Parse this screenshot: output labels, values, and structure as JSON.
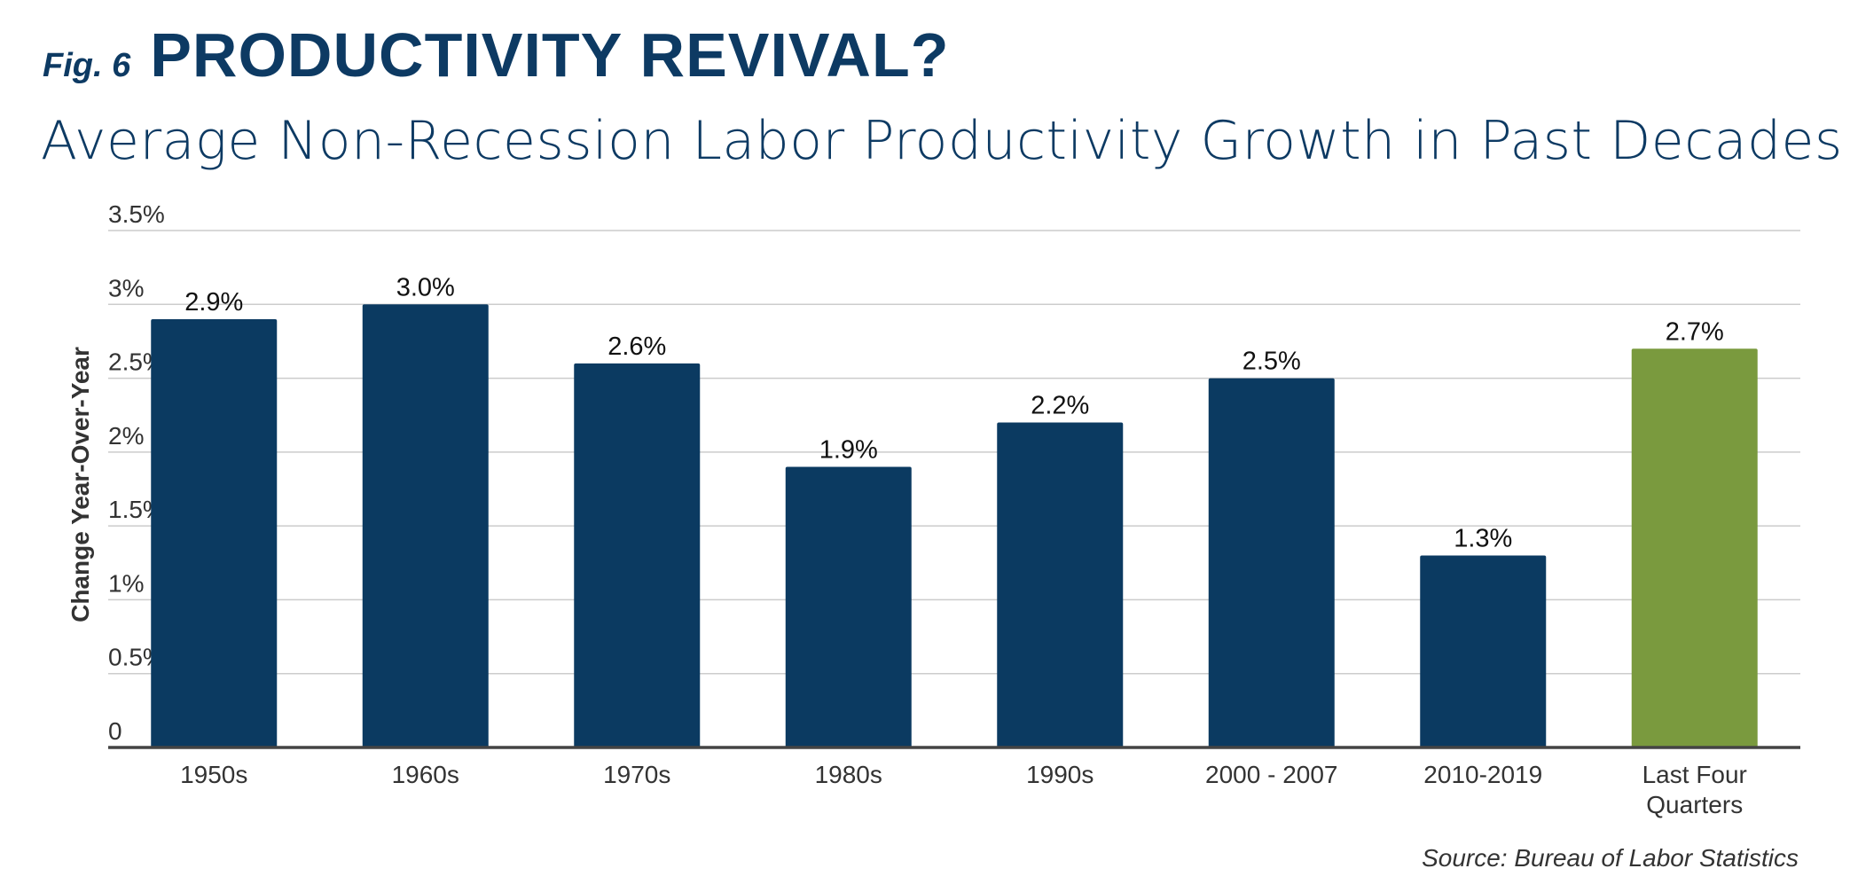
{
  "header": {
    "fig_label": "Fig. 6",
    "title": "PRODUCTIVITY REVIVAL?",
    "subtitle": "Average Non-Recession Labor Productivity Growth in Past Decades"
  },
  "source": "Source: Bureau of Labor Statistics",
  "colors": {
    "primary_bar": "#0b3a61",
    "highlight_bar": "#7a9a3e",
    "title": "#0d3a63",
    "grid": "#cccccc",
    "axis": "#444444"
  },
  "chart_data": {
    "type": "bar",
    "title": "Average Non-Recession Labor Productivity Growth in Past Decades",
    "ylabel": "Change Year-Over-Year",
    "xlabel": "",
    "ylim": [
      0,
      3.5
    ],
    "y_ticks": [
      {
        "value": 0,
        "label": "0"
      },
      {
        "value": 0.5,
        "label": "0.5%"
      },
      {
        "value": 1,
        "label": "1%"
      },
      {
        "value": 1.5,
        "label": "1.5%"
      },
      {
        "value": 2,
        "label": "2%"
      },
      {
        "value": 2.5,
        "label": "2.5%"
      },
      {
        "value": 3,
        "label": "3%"
      },
      {
        "value": 3.5,
        "label": "3.5%"
      }
    ],
    "grid": true,
    "categories": [
      [
        "1950s"
      ],
      [
        "1960s"
      ],
      [
        "1970s"
      ],
      [
        "1980s"
      ],
      [
        "1990s"
      ],
      [
        "2000 - 2007"
      ],
      [
        "2010-2019"
      ],
      [
        "Last Four",
        "Quarters"
      ]
    ],
    "values": [
      2.9,
      3.0,
      2.6,
      1.9,
      2.2,
      2.5,
      1.3,
      2.7
    ],
    "data_labels": [
      "2.9%",
      "3.0%",
      "2.6%",
      "1.9%",
      "2.2%",
      "2.5%",
      "1.3%",
      "2.7%"
    ],
    "highlight_index": 7
  }
}
